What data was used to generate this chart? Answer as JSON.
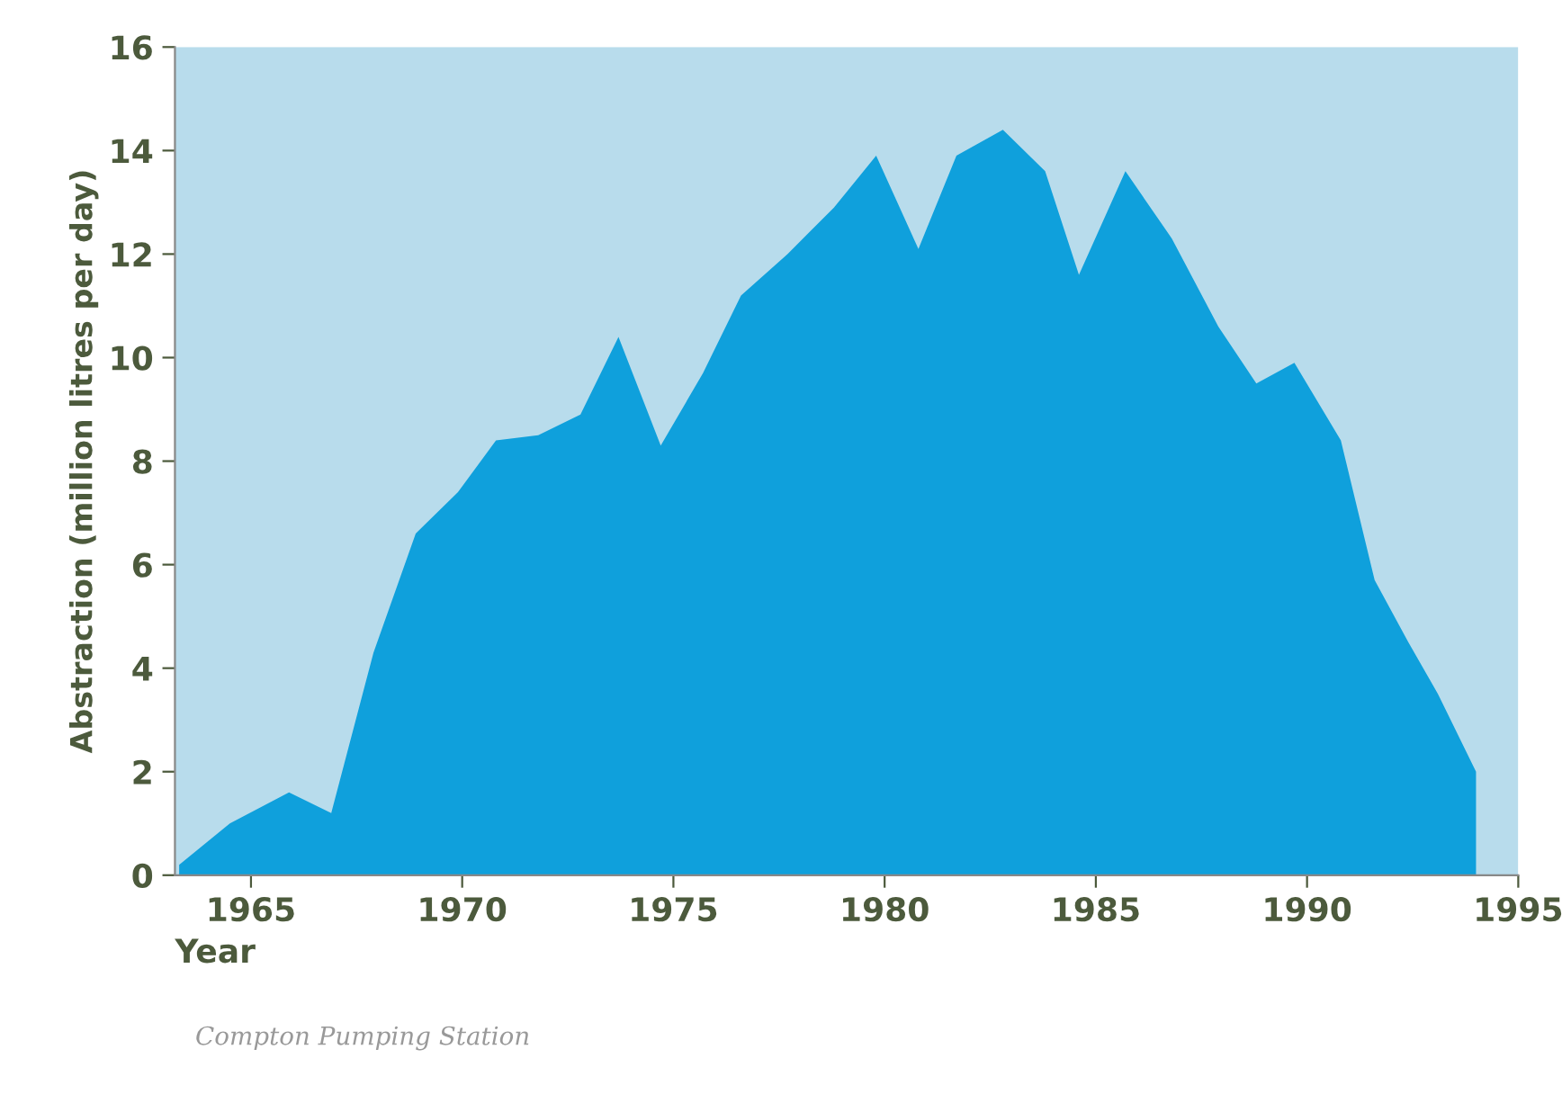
{
  "chart_data": {
    "type": "area",
    "xlabel": "Year",
    "ylabel": "Abstraction (million litres per day)",
    "x": [
      1963.3,
      1964.5,
      1965.9,
      1966.9,
      1967.9,
      1968.9,
      1969.9,
      1970.8,
      1971.8,
      1972.8,
      1973.7,
      1974.7,
      1975.7,
      1976.6,
      1977.7,
      1978.8,
      1979.8,
      1980.8,
      1981.7,
      1982.8,
      1983.8,
      1984.6,
      1985.7,
      1986.8,
      1987.9,
      1988.8,
      1989.7,
      1990.8,
      1991.6,
      1992.4,
      1993.1,
      1994.0
    ],
    "series": [
      {
        "color": "#0fa0dc",
        "values": [
          0.2,
          1.0,
          1.6,
          1.2,
          4.3,
          6.6,
          7.4,
          8.4,
          8.5,
          8.9,
          10.4,
          8.3,
          9.7,
          11.2,
          12.0,
          12.9,
          13.9,
          12.1,
          13.9,
          14.4,
          13.6,
          11.6,
          13.6,
          12.3,
          10.6,
          9.5,
          9.9,
          8.4,
          5.7,
          4.5,
          3.5,
          2.0
        ]
      }
    ],
    "xlim": [
      1963.2,
      1995
    ],
    "ylim": [
      0,
      16
    ],
    "xticks": [
      1965,
      1970,
      1975,
      1980,
      1985,
      1990,
      1995
    ],
    "yticks": [
      0,
      2,
      4,
      6,
      8,
      10,
      12,
      14,
      16
    ],
    "bands": [
      {
        "axis": "x",
        "from": 1963.2,
        "to": 1995,
        "color": "#b8dcec"
      }
    ],
    "grid": false,
    "legend": false,
    "annotations": [
      "Compton Pumping Station"
    ]
  }
}
